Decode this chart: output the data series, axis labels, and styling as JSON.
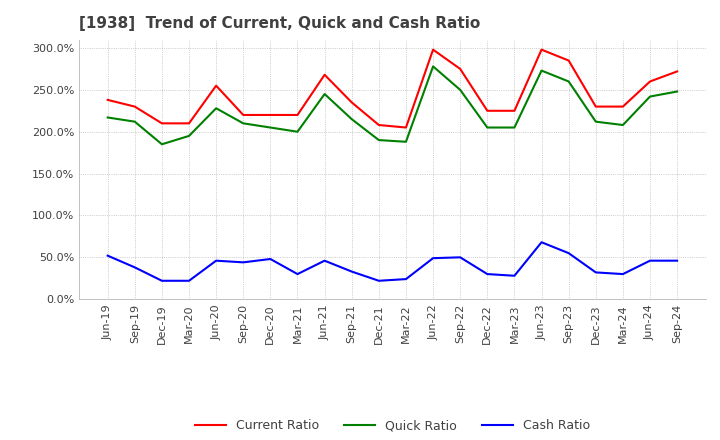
{
  "title": "[1938]  Trend of Current, Quick and Cash Ratio",
  "x_labels": [
    "Jun-19",
    "Sep-19",
    "Dec-19",
    "Mar-20",
    "Jun-20",
    "Sep-20",
    "Dec-20",
    "Mar-21",
    "Jun-21",
    "Sep-21",
    "Dec-21",
    "Mar-22",
    "Jun-22",
    "Sep-22",
    "Dec-22",
    "Mar-23",
    "Jun-23",
    "Sep-23",
    "Dec-23",
    "Mar-24",
    "Jun-24",
    "Sep-24"
  ],
  "current_ratio": [
    2.38,
    2.3,
    2.1,
    2.1,
    2.55,
    2.2,
    2.2,
    2.2,
    2.68,
    2.35,
    2.08,
    2.05,
    2.98,
    2.75,
    2.25,
    2.25,
    2.98,
    2.85,
    2.3,
    2.3,
    2.6,
    2.72
  ],
  "quick_ratio": [
    2.17,
    2.12,
    1.85,
    1.95,
    2.28,
    2.1,
    2.05,
    2.0,
    2.45,
    2.15,
    1.9,
    1.88,
    2.78,
    2.5,
    2.05,
    2.05,
    2.73,
    2.6,
    2.12,
    2.08,
    2.42,
    2.48
  ],
  "cash_ratio": [
    0.52,
    0.38,
    0.22,
    0.22,
    0.46,
    0.44,
    0.48,
    0.3,
    0.46,
    0.33,
    0.22,
    0.24,
    0.49,
    0.5,
    0.3,
    0.28,
    0.68,
    0.55,
    0.32,
    0.3,
    0.46,
    0.46
  ],
  "current_color": "#ff0000",
  "quick_color": "#008000",
  "cash_color": "#0000ff",
  "grid_color": "#aaaaaa",
  "bg_color": "#ffffff",
  "title_color": "#404040",
  "title_fontsize": 11,
  "tick_fontsize": 8,
  "legend_fontsize": 9
}
